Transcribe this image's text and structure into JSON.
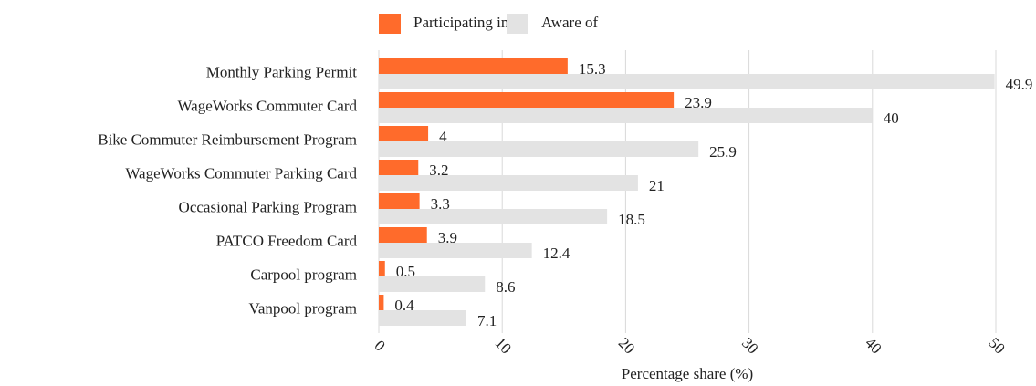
{
  "chart_data": {
    "type": "bar",
    "orientation": "horizontal",
    "x_label": "Percentage share (%)",
    "categories": [
      "Monthly Parking Permit",
      "WageWorks Commuter Card",
      "Bike Commuter Reimbursement Program",
      "WageWorks Commuter Parking Card",
      "Occasional Parking Program",
      "PATCO Freedom Card",
      "Carpool program",
      "Vanpool program"
    ],
    "series": [
      {
        "name": "Participating in",
        "color": "#ff6b2b",
        "values": [
          15.3,
          23.9,
          4,
          3.2,
          3.3,
          3.9,
          0.5,
          0.4
        ]
      },
      {
        "name": "Aware of",
        "color": "#e3e3e3",
        "values": [
          49.9,
          40,
          25.9,
          21,
          18.5,
          12.4,
          8.6,
          7.1
        ]
      }
    ],
    "xlim": [
      0,
      50
    ],
    "xticks": [
      0,
      10,
      20,
      30,
      40,
      50
    ],
    "grid": true,
    "legend": "top"
  }
}
